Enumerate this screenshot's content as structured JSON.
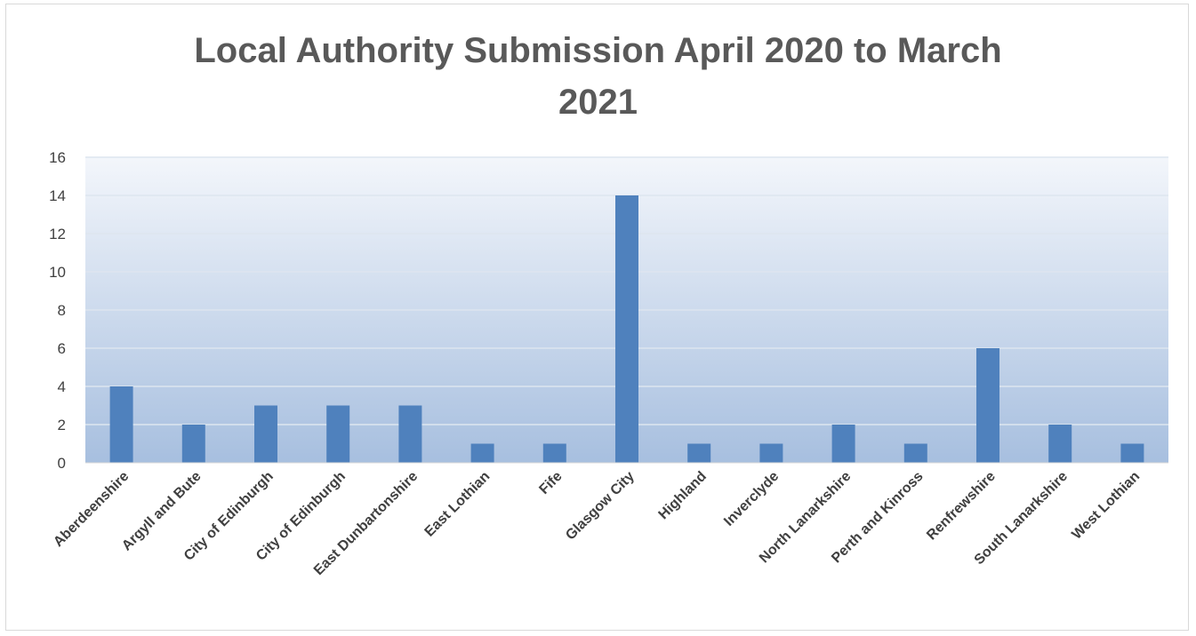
{
  "chart_data": {
    "type": "bar",
    "title_line1": "Local Authority Submission April 2020 to March",
    "title_line2": "2021",
    "categories": [
      "Aberdeenshire",
      "Argyll and Bute",
      "City of Edinburgh",
      "City of Edinburgh",
      "East Dunbartonshire",
      "East Lothian",
      "Fife",
      "Glasgow City",
      "Highland",
      "Inverclyde",
      "North Lanarkshire",
      "Perth and Kinross",
      "Renfrewshire",
      "South Lanarkshire",
      "West Lothian"
    ],
    "values": [
      4,
      2,
      3,
      3,
      3,
      1,
      1,
      14,
      1,
      1,
      2,
      1,
      6,
      2,
      1
    ],
    "ylim": [
      0,
      16
    ],
    "yticks": [
      "0",
      "2",
      "4",
      "6",
      "8",
      "10",
      "12",
      "14",
      "16"
    ],
    "grid": true,
    "legend": "none",
    "colors": {
      "bar": "#4f81bd",
      "plot_top": "#f3f6fb",
      "plot_bottom": "#a7bfdf",
      "grid": "#dde5ef",
      "text": "#404040",
      "title": "#595959"
    }
  }
}
